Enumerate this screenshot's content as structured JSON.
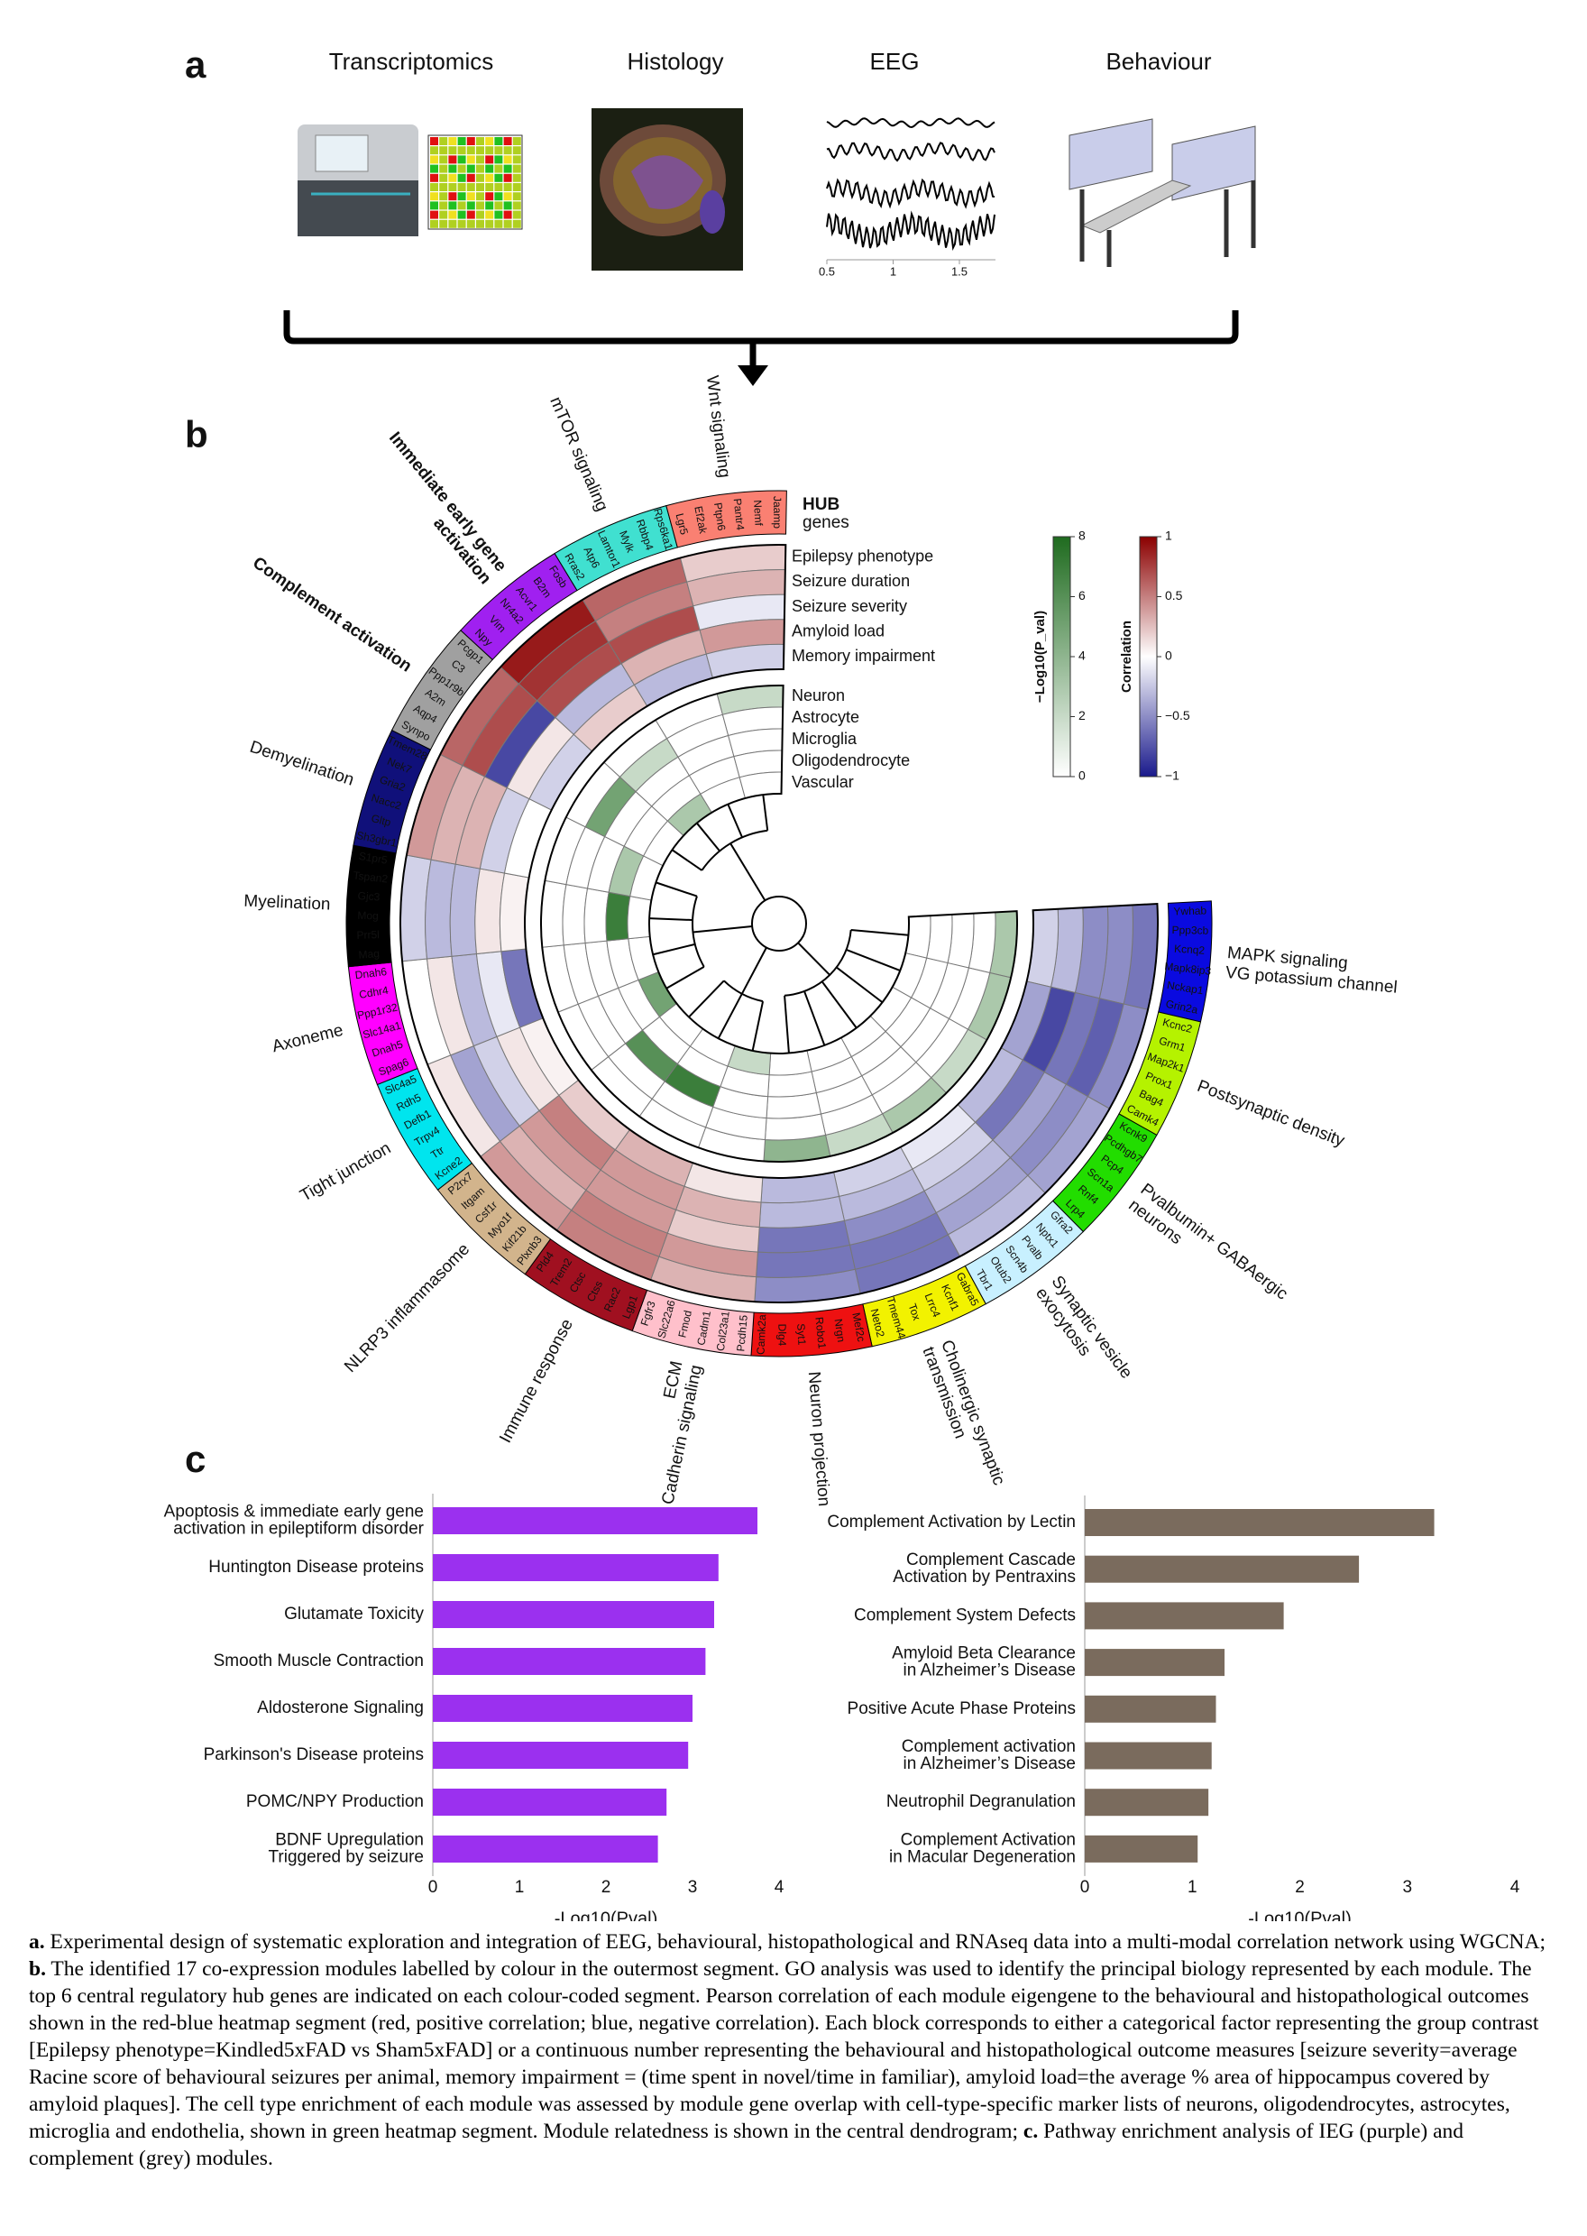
{
  "figure": {
    "a": {
      "label": "a",
      "items": [
        "Transcriptomics",
        "Histology",
        "EEG",
        "Behaviour"
      ],
      "eeg_xticks": [
        0.5,
        1,
        1.5
      ]
    },
    "b": {
      "label": "b",
      "hub_title": "HUB",
      "hub_subtitle": "genes",
      "correlation_rows": [
        "Epilepsy phenotype",
        "Seizure duration",
        "Seizure severity",
        "Amyloid load",
        "Memory impairment"
      ],
      "celltype_rows": [
        "Neuron",
        "Astrocyte",
        "Microglia",
        "Oligodendrocyte",
        "Vascular"
      ],
      "legend_green": {
        "title": "−Log10(P_val)",
        "lim": [
          0,
          8
        ],
        "ticks": [
          0,
          2,
          4,
          6,
          8
        ]
      },
      "legend_corr": {
        "title": "Correlation",
        "lim": [
          -1,
          1
        ],
        "ticks": [
          1,
          0.5,
          0,
          {
            "value": -0.5,
            "label": "−0.5"
          },
          {
            "value": -1,
            "label": "−1"
          }
        ]
      },
      "modules": [
        {
          "label": [
            "MAPK signaling",
            "VG potassium channel"
          ],
          "color": "#0a0ae0",
          "highlight": false,
          "genes": [
            "Ywhab",
            "Ppp3cb",
            "Kcnq2",
            "Mapk8ip3",
            "Nckap1",
            "Grin2a"
          ],
          "correlation": [
            -0.6,
            -0.5,
            -0.5,
            -0.3,
            -0.2
          ],
          "celltype": [
            3,
            0,
            0,
            0,
            0
          ]
        },
        {
          "label": [
            "Postsynaptic density"
          ],
          "color": "#b5f200",
          "highlight": false,
          "genes": [
            "Kcnc2",
            "Grm1",
            "Map2k1",
            "Prox1",
            "Bag4",
            "Camk4"
          ],
          "correlation": [
            -0.5,
            -0.7,
            -0.6,
            -0.8,
            -0.4
          ],
          "celltype": [
            3,
            0,
            0,
            0,
            0
          ]
        },
        {
          "label": [
            "Pvalbumin+ GABAergic",
            "neurons"
          ],
          "color": "#22dd00",
          "highlight": false,
          "genes": [
            "Kcnk9",
            "Pcdhgb7",
            "Pcp4",
            "Scn1a",
            "Rnf4",
            "Lrp4"
          ],
          "correlation": [
            -0.4,
            -0.5,
            -0.4,
            -0.6,
            -0.3
          ],
          "celltype": [
            2,
            0,
            0,
            0,
            0
          ]
        },
        {
          "label": [
            "Synaptic vesicle",
            "exocytosis"
          ],
          "color": "#c8f0ff",
          "highlight": false,
          "genes": [
            "Gfra2",
            "Nptx1",
            "Pvalb",
            "Scn4b",
            "Otub2",
            "Tbr1"
          ],
          "correlation": [
            -0.3,
            -0.4,
            -0.3,
            -0.2,
            -0.1
          ],
          "celltype": [
            3,
            0,
            0,
            0,
            0
          ]
        },
        {
          "label": [
            "Cholinergic synaptic",
            "transmission"
          ],
          "color": "#f2f200",
          "highlight": false,
          "genes": [
            "Gabra5",
            "Kcnf1",
            "Lrrc4",
            "Tox",
            "Tmem44",
            "Neto2"
          ],
          "correlation": [
            -0.6,
            -0.6,
            -0.5,
            -0.3,
            -0.2
          ],
          "celltype": [
            2,
            0,
            0,
            0,
            0
          ]
        },
        {
          "label": [
            "Neuron projection"
          ],
          "color": "#ee1111",
          "highlight": false,
          "genes": [
            "Mef2c",
            "Nrgn",
            "Robo1",
            "Syt1",
            "Dlg4",
            "Camk2a"
          ],
          "correlation": [
            -0.5,
            -0.6,
            -0.6,
            -0.3,
            -0.3
          ],
          "celltype": [
            4,
            0,
            0,
            0,
            0
          ]
        },
        {
          "label": [
            "ECM",
            "Cadherin signaling"
          ],
          "color": "#ffc0cb",
          "highlight": false,
          "genes": [
            "Pcdh15",
            "Col23a1",
            "Cadm1",
            "Fmod",
            "Slc22a6",
            "Fgfr3"
          ],
          "correlation": [
            0.3,
            0.4,
            0.2,
            0.3,
            0.1
          ],
          "celltype": [
            0,
            0,
            0,
            0,
            2
          ]
        },
        {
          "label": [
            "Immune response"
          ],
          "color": "#a01020",
          "highlight": false,
          "genes": [
            "Lgp1",
            "Rac2",
            "Ctss",
            "Ctsc",
            "Trem2",
            "Pld4"
          ],
          "correlation": [
            0.5,
            0.5,
            0.4,
            0.4,
            0.3
          ],
          "celltype": [
            0,
            0,
            7,
            0,
            0
          ]
        },
        {
          "label": [
            "NLRP3 inflammasome"
          ],
          "color": "#d2b48c",
          "highlight": false,
          "genes": [
            "Plxnb3",
            "Kif21b",
            "Myo1f",
            "Csf1r",
            "Itgam",
            "P2rx7"
          ],
          "correlation": [
            0.4,
            0.3,
            0.4,
            0.5,
            0.2
          ],
          "celltype": [
            0,
            0,
            6,
            0,
            0
          ]
        },
        {
          "label": [
            "Tight junction"
          ],
          "color": "#00e5ee",
          "highlight": false,
          "genes": [
            "Kcne2",
            "Ttr",
            "Trpv4",
            "Defb1",
            "Rdh5",
            "Slc4a5"
          ],
          "correlation": [
            0.1,
            -0.4,
            -0.2,
            0.1,
            0.05
          ],
          "celltype": [
            0,
            0,
            0,
            0,
            5
          ]
        },
        {
          "label": [
            "Axoneme"
          ],
          "color": "#ff00ff",
          "highlight": false,
          "genes": [
            "Spag6",
            "Dnah5",
            "Slc14a1",
            "Ppp1r32",
            "Cdhr4",
            "Dnah6"
          ],
          "correlation": [
            0,
            0.1,
            -0.3,
            -0.1,
            -0.6
          ],
          "celltype": [
            0,
            0,
            0,
            0,
            0
          ]
        },
        {
          "label": [
            "Myelination"
          ],
          "color": "#000000",
          "highlight": false,
          "genes": [
            "Mag",
            "Prr5l",
            "Mog",
            "Gjc3",
            "Tspan2",
            "S1pr5"
          ],
          "correlation": [
            -0.2,
            -0.3,
            -0.3,
            0.1,
            0.05
          ],
          "celltype": [
            0,
            0,
            0,
            7,
            0
          ]
        },
        {
          "label": [
            "Demyelination"
          ],
          "color": "#10107a",
          "highlight": false,
          "genes": [
            "Sh3gbr1",
            "Gltp",
            "Nacc2",
            "Gria2",
            "Nek7",
            "Tmem28"
          ],
          "correlation": [
            0.4,
            0.3,
            0.3,
            -0.2,
            0
          ],
          "celltype": [
            0,
            0,
            0,
            3,
            0
          ]
        },
        {
          "label": [
            "Complement activation"
          ],
          "color": "#a0a0a0",
          "highlight": true,
          "genes": [
            "Synpo",
            "Aqp4",
            "A2m",
            "Ppp1r9b",
            "C3",
            "Pcgp1"
          ],
          "correlation": [
            0.6,
            0.7,
            -0.8,
            0.1,
            -0.2
          ],
          "celltype": [
            0,
            5,
            0,
            0,
            0
          ]
        },
        {
          "label": [
            "Immediate early gene",
            "activation"
          ],
          "color": "#a020f0",
          "highlight": true,
          "genes": [
            "Npy",
            "Vim",
            "Nr4a2",
            "Acvr1",
            "B2m",
            "Fosb"
          ],
          "correlation": [
            0.9,
            0.8,
            0.7,
            -0.3,
            0.2
          ],
          "celltype": [
            0,
            2,
            0,
            0,
            3
          ]
        },
        {
          "label": [
            "mTOR signaling"
          ],
          "color": "#40e0d0",
          "highlight": false,
          "genes": [
            "Rras2",
            "Atp6",
            "Lamtor1",
            "Mylk",
            "Rbbp4",
            "Rps6ka1"
          ],
          "correlation": [
            0.6,
            0.5,
            0.7,
            0.3,
            -0.3
          ],
          "celltype": [
            0,
            0,
            0,
            0,
            0
          ]
        },
        {
          "label": [
            "Wnt signaling"
          ],
          "color": "#fa8072",
          "highlight": false,
          "genes": [
            "Lgr5",
            "Ef2ak",
            "Ptpn6",
            "Pantr4",
            "Nemf",
            "Jaamp"
          ],
          "correlation": [
            0.2,
            0.3,
            -0.1,
            0.4,
            -0.2
          ],
          "celltype": [
            2,
            0,
            0,
            0,
            0
          ]
        }
      ]
    },
    "c": {
      "label": "c"
    }
  },
  "chart_data": [
    {
      "type": "bar",
      "orientation": "horizontal",
      "color": "#9b30ef",
      "xlim": [
        0,
        4
      ],
      "xticks": [
        0,
        1,
        2,
        3,
        4
      ],
      "xlabel": "-Log10(Pval)",
      "categories": [
        [
          "Apoptosis & immediate early gene",
          "activation in epileptiform disorder"
        ],
        [
          "Huntington Disease proteins"
        ],
        [
          "Glutamate Toxicity"
        ],
        [
          "Smooth Muscle Contraction"
        ],
        [
          "Aldosterone Signaling"
        ],
        [
          "Parkinson's Disease proteins"
        ],
        [
          "POMC/NPY Production"
        ],
        [
          "BDNF Upregulation",
          "Triggered by seizure"
        ]
      ],
      "values": [
        3.75,
        3.3,
        3.25,
        3.15,
        3.0,
        2.95,
        2.7,
        2.6
      ]
    },
    {
      "type": "bar",
      "orientation": "horizontal",
      "color": "#7a6b5d",
      "xlim": [
        0,
        4
      ],
      "xticks": [
        0,
        1,
        2,
        3,
        4
      ],
      "xlabel": "-Log10(Pval)",
      "categories": [
        [
          "Complement Activation by Lectin"
        ],
        [
          "Complement Cascade",
          "Activation by Pentraxins"
        ],
        [
          "Complement System Defects"
        ],
        [
          "Amyloid Beta Clearance",
          "in Alzheimer’s Disease"
        ],
        [
          "Positive Acute Phase Proteins"
        ],
        [
          "Complement activation",
          "in Alzheimer’s Disease"
        ],
        [
          "Neutrophil Degranulation"
        ],
        [
          "Complement Activation",
          "in Macular Degeneration"
        ]
      ],
      "values": [
        3.25,
        2.55,
        1.85,
        1.3,
        1.22,
        1.18,
        1.15,
        1.05
      ]
    }
  ],
  "caption": {
    "parts": [
      {
        "label": "a.",
        "text": "Experimental design of systematic exploration and integration of EEG, behavioural, histopathological and RNAseq data into a multi-modal correlation network using WGCNA;"
      },
      {
        "label": "b.",
        "text": "The identified 17 co-expression modules labelled by colour in the outermost segment. GO analysis was used to identify the principal biology represented by each module. The top 6 central regulatory hub genes are indicated on each colour-coded segment. Pearson correlation of each module eigengene to the behavioural and histopathological outcomes shown in the red-blue heatmap segment (red, positive correlation; blue, negative correlation). Each block corresponds to either a categorical factor representing the group contrast [Epilepsy phenotype=Kindled5xFAD vs Sham5xFAD] or a continuous number representing the behavioural and histopathological outcome measures [seizure severity=average Racine score of behavioural seizures per animal, memory impairment = (time spent in novel/time in familiar), amyloid load=the average % area of hippocampus covered by amyloid plaques]. The cell type enrichment of each module was assessed by module gene overlap with cell-type-specific marker lists of neurons, oligodendrocytes, astrocytes, microglia and endothelia, shown in green heatmap segment. Module relatedness is shown in the central dendrogram;"
      },
      {
        "label": "c.",
        "text": "Pathway enrichment analysis of IEG (purple) and complement (grey) modules."
      }
    ]
  }
}
